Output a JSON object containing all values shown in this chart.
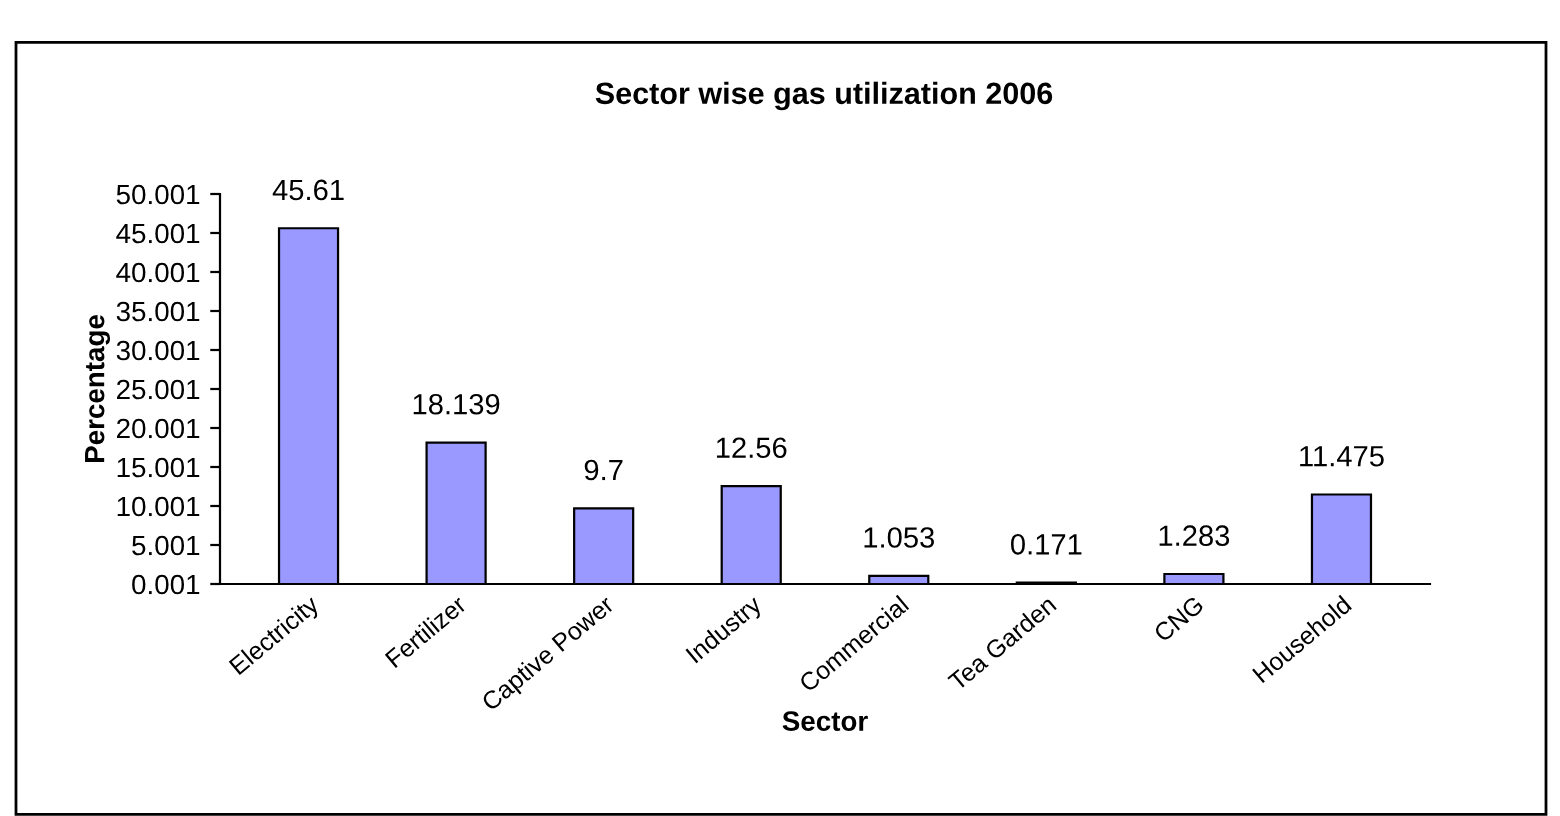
{
  "chart_data": {
    "type": "bar",
    "title": "Sector wise gas utilization 2006",
    "xlabel": "Sector",
    "ylabel": "Percentage",
    "categories": [
      "Electricity",
      "Fertilizer",
      "Captive Power",
      "Industry",
      "Commercial",
      "Tea Garden",
      "CNG",
      "Household"
    ],
    "values": [
      45.61,
      18.139,
      9.7,
      12.56,
      1.053,
      0.171,
      1.283,
      11.475
    ],
    "color": "#9999ff",
    "data_labels": true,
    "grid": false,
    "legend": false,
    "ylim": [
      0.001,
      50.001
    ],
    "yticks": [
      {
        "value": 0.001,
        "label": "0.001"
      },
      {
        "value": 5.001,
        "label": "5.001"
      },
      {
        "value": 10.001,
        "label": "10.001"
      },
      {
        "value": 15.001,
        "label": "15.001"
      },
      {
        "value": 20.001,
        "label": "20.001"
      },
      {
        "value": 25.001,
        "label": "25.001"
      },
      {
        "value": 30.001,
        "label": "30.001"
      },
      {
        "value": 35.001,
        "label": "35.001"
      },
      {
        "value": 40.001,
        "label": "40.001"
      },
      {
        "value": 45.001,
        "label": "45.001"
      },
      {
        "value": 50.001,
        "label": "50.001"
      }
    ]
  }
}
